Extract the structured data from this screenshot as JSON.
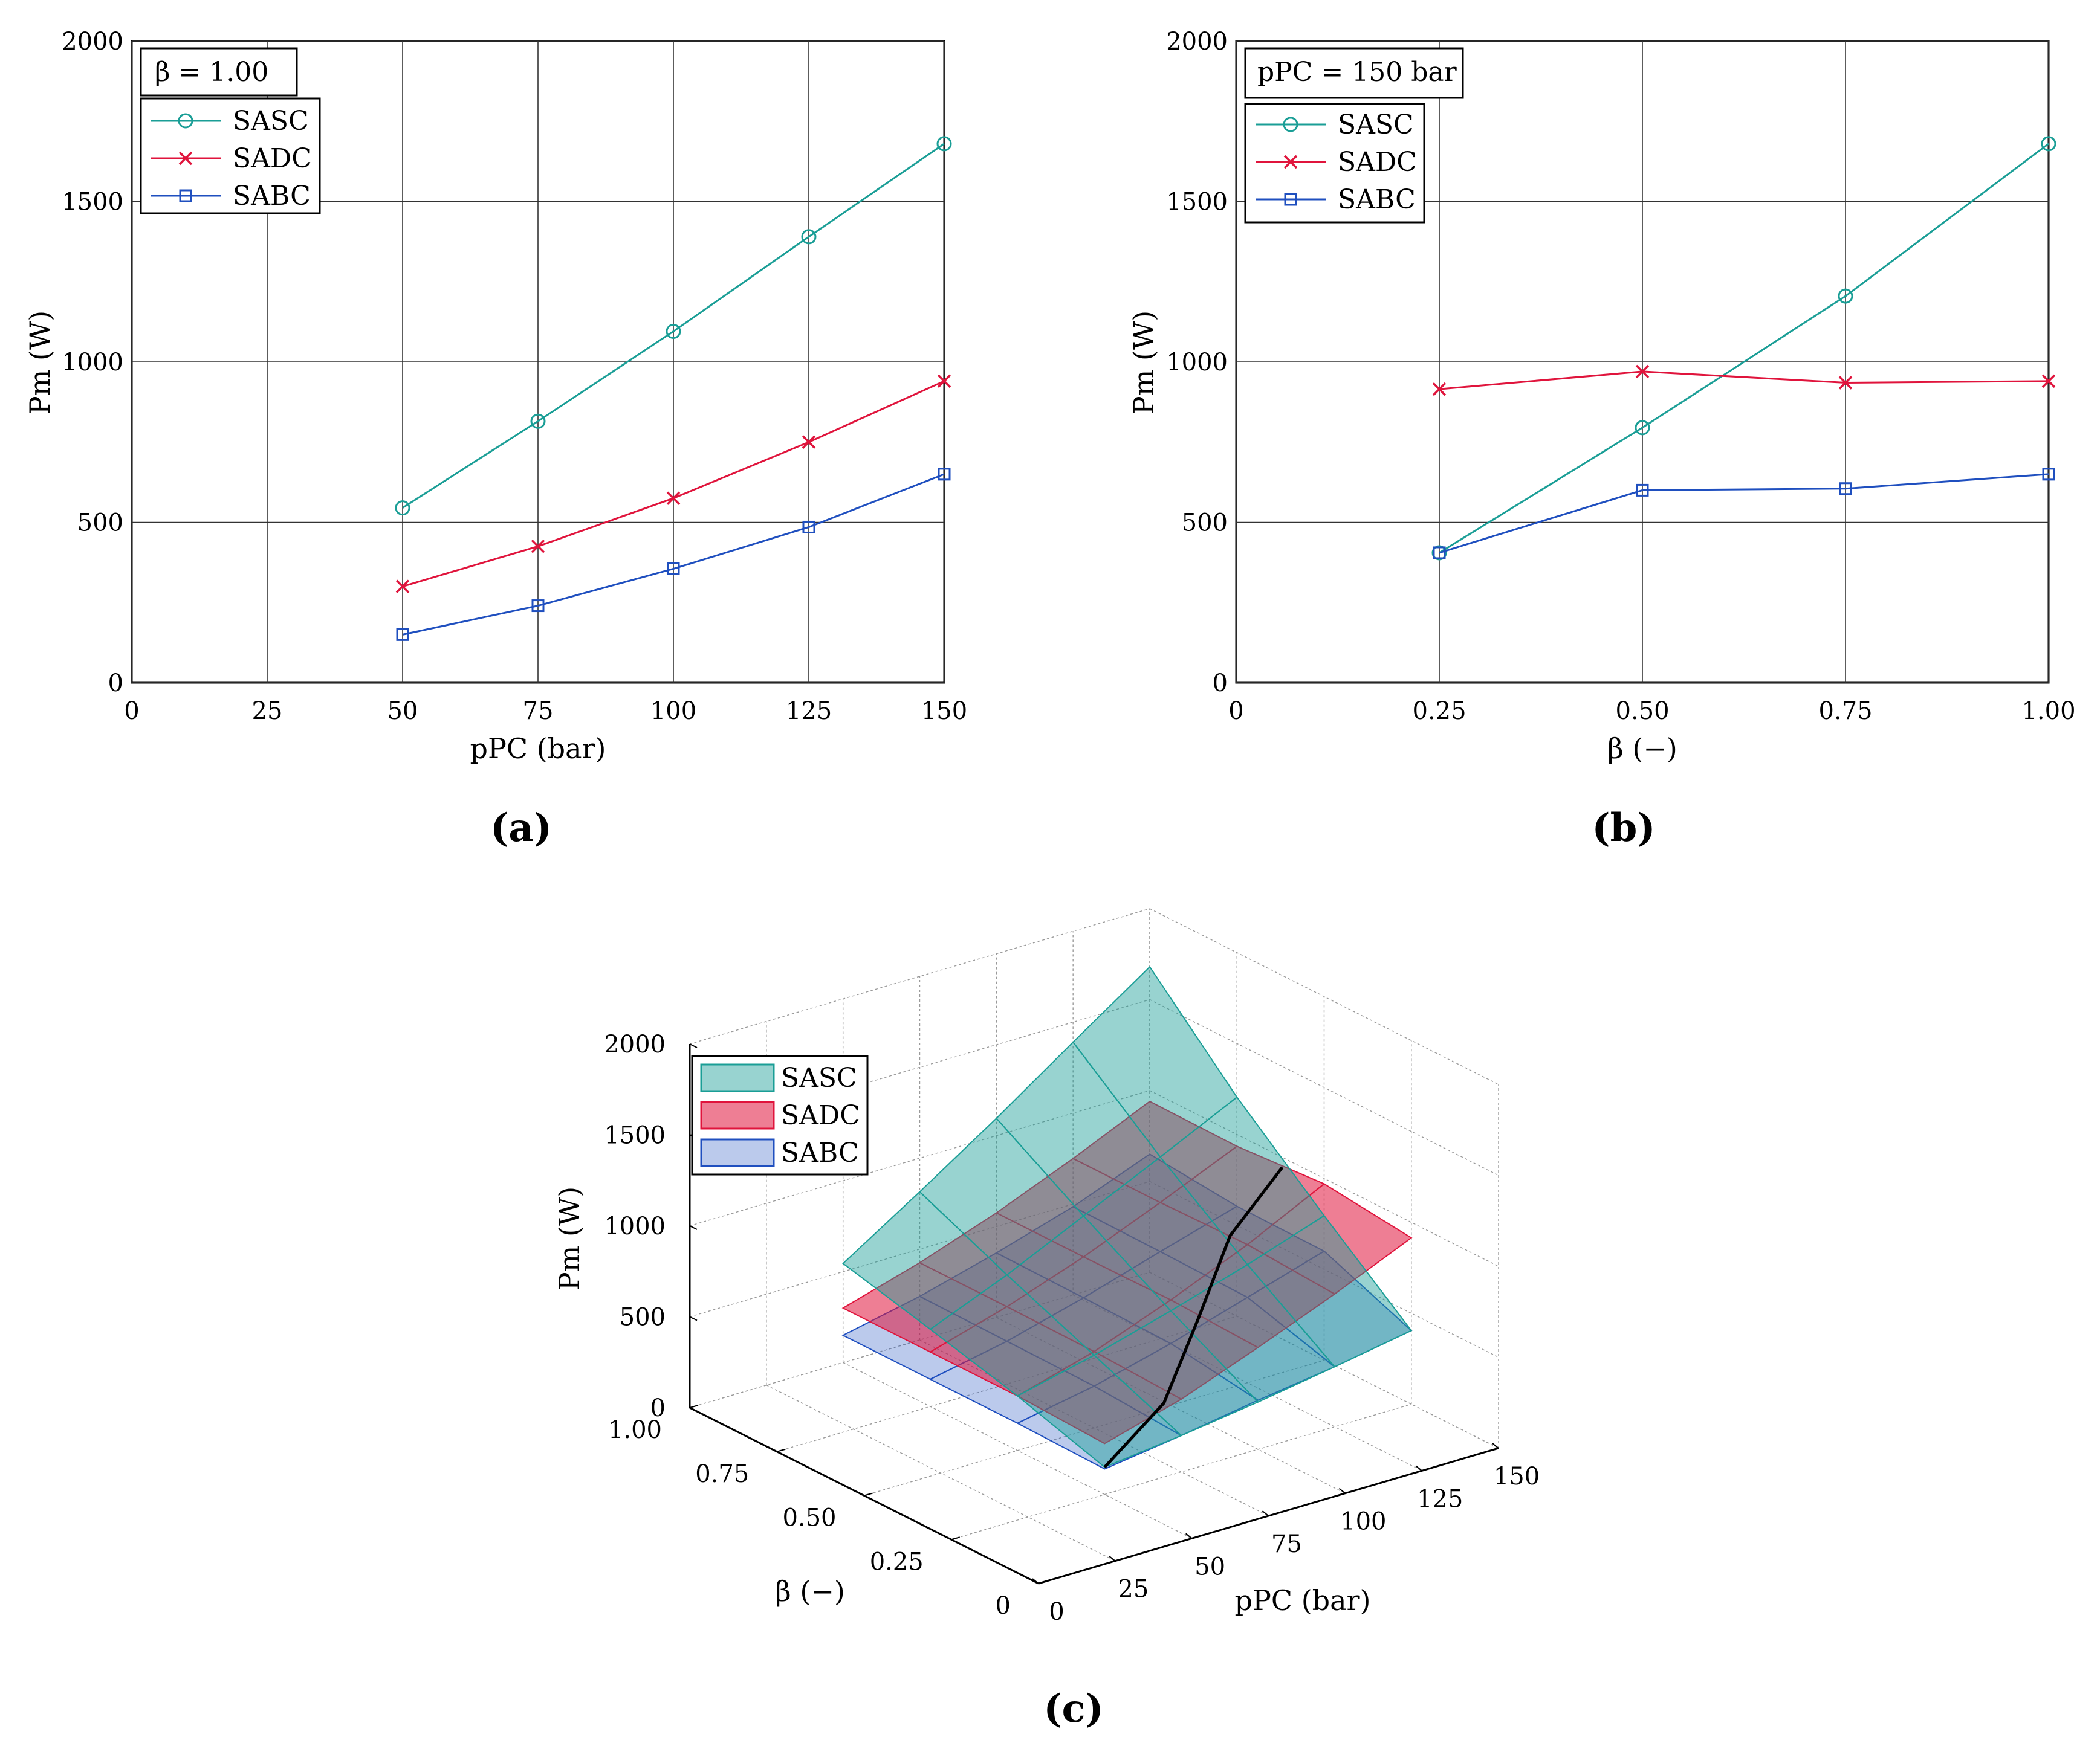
{
  "colors": {
    "SASC": "#1a9e96",
    "SADC": "#e0143c",
    "SABC": "#1f4fbf"
  },
  "chart_data": [
    {
      "panel": "(a)",
      "type": "line",
      "annotation": "β = 1.00",
      "xlabel": "pPC (bar)",
      "ylabel": "Pm (W)",
      "xlim": [
        0,
        150
      ],
      "ylim": [
        0,
        2000
      ],
      "xticks": [
        "0",
        "25",
        "50",
        "75",
        "100",
        "125",
        "150"
      ],
      "yticks": [
        "0",
        "500",
        "1000",
        "1500",
        "2000"
      ],
      "grid": true,
      "legend_position": "top-left",
      "x": [
        50,
        75,
        100,
        125,
        150
      ],
      "series": [
        {
          "name": "SASC",
          "marker": "circle",
          "values": [
            545,
            815,
            1095,
            1390,
            1680
          ]
        },
        {
          "name": "SADC",
          "marker": "x",
          "values": [
            300,
            425,
            575,
            750,
            940
          ]
        },
        {
          "name": "SABC",
          "marker": "square",
          "values": [
            150,
            240,
            355,
            485,
            650
          ]
        }
      ]
    },
    {
      "panel": "(b)",
      "type": "line",
      "annotation": "pPC = 150 bar",
      "xlabel": "β (−)",
      "ylabel": "Pm (W)",
      "xlim": [
        0,
        1
      ],
      "ylim": [
        0,
        2000
      ],
      "xticks": [
        "0",
        "0.25",
        "0.50",
        "0.75",
        "1.00"
      ],
      "yticks": [
        "0",
        "500",
        "1000",
        "1500",
        "2000"
      ],
      "grid": true,
      "legend_position": "top-left",
      "x": [
        0.25,
        0.5,
        0.75,
        1.0
      ],
      "series": [
        {
          "name": "SASC",
          "marker": "circle",
          "values": [
            405,
            795,
            1205,
            1680
          ]
        },
        {
          "name": "SADC",
          "marker": "x",
          "values": [
            915,
            970,
            935,
            940
          ]
        },
        {
          "name": "SABC",
          "marker": "square",
          "values": [
            405,
            600,
            605,
            650
          ]
        }
      ]
    },
    {
      "panel": "(c)",
      "type": "surface3d",
      "xlabel": "β (−)",
      "ylabel": "pPC (bar)",
      "zlabel": "Pm (W)",
      "beta_ticks": [
        "0",
        "0.25",
        "0.50",
        "0.75",
        "1.00"
      ],
      "p_ticks": [
        "0",
        "25",
        "50",
        "75",
        "100",
        "125",
        "150"
      ],
      "z_ticks": [
        "0",
        "500",
        "1000",
        "1500",
        "2000"
      ],
      "legend_position": "top-left",
      "beta": [
        0.25,
        0.5,
        0.75,
        1.0
      ],
      "p": [
        50,
        75,
        100,
        125,
        150
      ],
      "series": [
        {
          "name": "SASC",
          "values": [
            [
              150,
              200,
              260,
              330,
              405
            ],
            [
              300,
              400,
              520,
              650,
              795
            ],
            [
              425,
              600,
              800,
              1000,
              1205
            ],
            [
              545,
              815,
              1095,
              1390,
              1680
            ]
          ]
        },
        {
          "name": "SADC",
          "values": [
            [
              280,
              400,
              560,
              730,
              915
            ],
            [
              300,
              420,
              580,
              760,
              970
            ],
            [
              300,
              425,
              575,
              750,
              935
            ],
            [
              300,
              425,
              575,
              750,
              940
            ]
          ]
        },
        {
          "name": "SABC",
          "values": [
            [
              140,
              200,
              270,
              330,
              405
            ],
            [
              150,
              230,
              340,
              470,
              600
            ],
            [
              150,
              235,
              350,
              480,
              605
            ],
            [
              150,
              240,
              355,
              485,
              650
            ]
          ]
        }
      ]
    }
  ]
}
